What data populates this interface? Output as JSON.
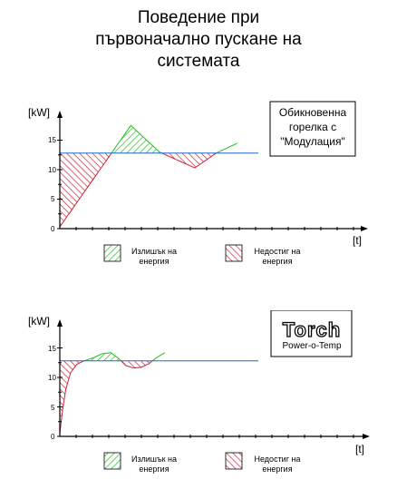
{
  "title_lines": [
    "Поведение при",
    "първоначално пускане на",
    "системата"
  ],
  "colors": {
    "excess": "#22bb22",
    "deficit": "#cc2233",
    "demand_line": "#2266cc",
    "axis": "#000000"
  },
  "chart_data": [
    {
      "type": "area",
      "ylabel": "[kW]",
      "xlabel": "[t]",
      "ylim": [
        0,
        18
      ],
      "yticks": [
        "0",
        "5",
        "10",
        "15"
      ],
      "box_lines": [
        "Обикновенна",
        "горелка с",
        "\"Модулация\""
      ],
      "demand_kw": 12.8,
      "output_curve": {
        "t": [
          0,
          10,
          14,
          19,
          22,
          25
        ],
        "kw": [
          0.3,
          17.5,
          13.0,
          10.3,
          12.8,
          14.5
        ]
      },
      "legend": [
        {
          "key": "excess",
          "label_lines": [
            "Излишък на",
            "енергия"
          ]
        },
        {
          "key": "deficit",
          "label_lines": [
            "Недостиг на",
            "енергия"
          ]
        }
      ]
    },
    {
      "type": "area",
      "ylabel": "[kW]",
      "xlabel": "[t]",
      "ylim": [
        0,
        18
      ],
      "yticks": [
        "0",
        "5",
        "10",
        "15"
      ],
      "logo": {
        "name": "Torch",
        "tagline": "Power-o-Temp"
      },
      "demand_kw": 12.8,
      "output_curve": {
        "t": [
          0,
          0.4,
          1.0,
          1.8,
          2.8,
          4.0,
          5.5,
          7.0,
          8.5,
          9.8,
          11.0,
          12.3,
          13.5,
          14.8,
          16.0,
          17.5
        ],
        "kw": [
          0.5,
          4.0,
          8.0,
          10.8,
          12.2,
          12.8,
          13.3,
          14.0,
          14.2,
          13.2,
          12.0,
          11.6,
          11.7,
          12.3,
          13.3,
          14.2
        ]
      },
      "legend": [
        {
          "key": "excess",
          "label_lines": [
            "Излишък на",
            "енергия"
          ]
        },
        {
          "key": "deficit",
          "label_lines": [
            "Недостиг на",
            "енергия"
          ]
        }
      ]
    }
  ]
}
